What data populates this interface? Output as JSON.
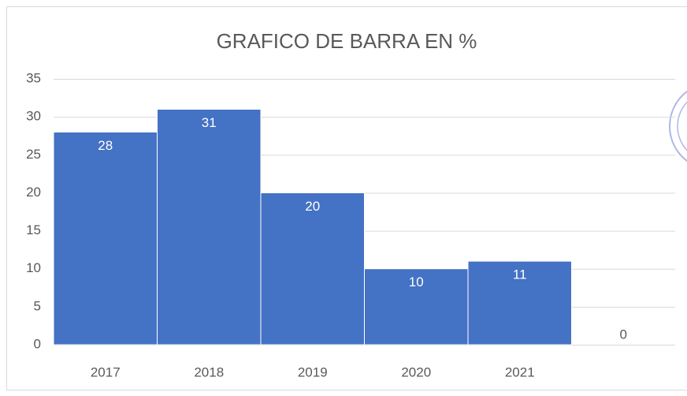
{
  "chart_data": {
    "type": "bar",
    "title": "GRAFICO DE BARRA EN %",
    "categories": [
      "2017",
      "2018",
      "2019",
      "2020",
      "2021",
      null
    ],
    "values": [
      28,
      31,
      20,
      10,
      11,
      0
    ],
    "color": "#4472c4",
    "ylim": [
      0,
      35
    ],
    "yticks": [
      0,
      5,
      10,
      15,
      20,
      25,
      30,
      35
    ],
    "grid": true
  }
}
